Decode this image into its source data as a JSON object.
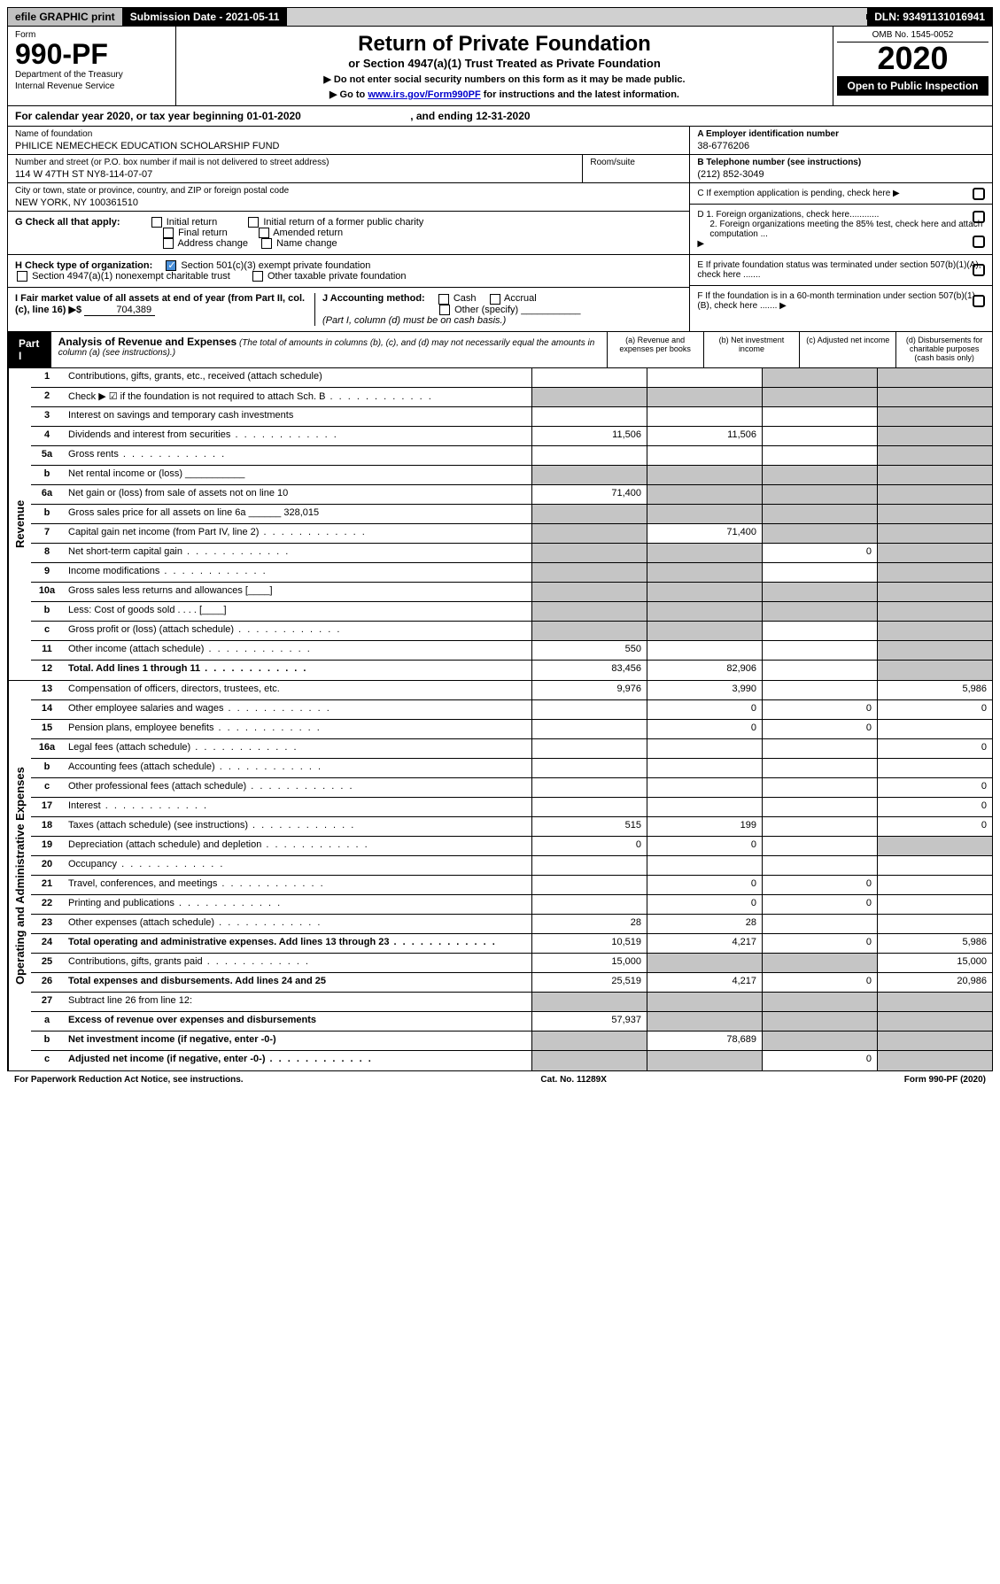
{
  "top_bar": {
    "efile": "efile GRAPHIC print",
    "submission": "Submission Date - 2021-05-11",
    "dln": "DLN: 93491131016941"
  },
  "header": {
    "form_label": "Form",
    "form_number": "990-PF",
    "dept1": "Department of the Treasury",
    "dept2": "Internal Revenue Service",
    "title": "Return of Private Foundation",
    "subtitle": "or Section 4947(a)(1) Trust Treated as Private Foundation",
    "instr1": "▶ Do not enter social security numbers on this form as it may be made public.",
    "instr2_pre": "▶ Go to ",
    "instr2_link": "www.irs.gov/Form990PF",
    "instr2_post": " for instructions and the latest information.",
    "omb": "OMB No. 1545-0052",
    "year": "2020",
    "open": "Open to Public Inspection"
  },
  "cal_year": {
    "text_pre": "For calendar year 2020, or tax year beginning ",
    "begin": "01-01-2020",
    "text_mid": " , and ending ",
    "end": "12-31-2020"
  },
  "foundation": {
    "name_label": "Name of foundation",
    "name": "PHILICE NEMECHECK EDUCATION SCHOLARSHIP FUND",
    "addr_label": "Number and street (or P.O. box number if mail is not delivered to street address)",
    "addr": "114 W 47TH ST NY8-114-07-07",
    "room_label": "Room/suite",
    "city_label": "City or town, state or province, country, and ZIP or foreign postal code",
    "city": "NEW YORK, NY  100361510"
  },
  "boxA": {
    "label": "A Employer identification number",
    "value": "38-6776206"
  },
  "boxB": {
    "label": "B Telephone number (see instructions)",
    "value": "(212) 852-3049"
  },
  "boxC": {
    "label": "C If exemption application is pending, check here"
  },
  "boxD": {
    "l1": "D 1. Foreign organizations, check here............",
    "l2": "2. Foreign organizations meeting the 85% test, check here and attach computation ..."
  },
  "boxE": {
    "label": "E  If private foundation status was terminated under section 507(b)(1)(A), check here ......."
  },
  "boxF": {
    "label": "F  If the foundation is in a 60-month termination under section 507(b)(1)(B), check here ......."
  },
  "checkG": {
    "label": "G Check all that apply:",
    "c1": "Initial return",
    "c2": "Initial return of a former public charity",
    "c3": "Final return",
    "c4": "Amended return",
    "c5": "Address change",
    "c6": "Name change"
  },
  "checkH": {
    "label": "H Check type of organization:",
    "c1": "Section 501(c)(3) exempt private foundation",
    "c2": "Section 4947(a)(1) nonexempt charitable trust",
    "c3": "Other taxable private foundation"
  },
  "checkI": {
    "label": "I Fair market value of all assets at end of year (from Part II, col. (c), line 16) ▶$ ",
    "value": "704,389"
  },
  "checkJ": {
    "label": "J Accounting method:",
    "c1": "Cash",
    "c2": "Accrual",
    "c3": "Other (specify)",
    "note": "(Part I, column (d) must be on cash basis.)"
  },
  "part1": {
    "label": "Part I",
    "title": "Analysis of Revenue and Expenses",
    "title_note": " (The total of amounts in columns (b), (c), and (d) may not necessarily equal the amounts in column (a) (see instructions).)",
    "col_a": "(a)   Revenue and expenses per books",
    "col_b": "(b)  Net investment income",
    "col_c": "(c)  Adjusted net income",
    "col_d": "(d)  Disbursements for charitable purposes (cash basis only)"
  },
  "sections": {
    "revenue": "Revenue",
    "expenses": "Operating and Administrative Expenses"
  },
  "rows": [
    {
      "n": "1",
      "d": "Contributions, gifts, grants, etc., received (attach schedule)",
      "a": "",
      "b": "",
      "c": "g",
      "dd": "g"
    },
    {
      "n": "2",
      "d": "Check ▶ ☑ if the foundation is not required to attach Sch. B",
      "a": "g",
      "b": "g",
      "c": "g",
      "dd": "g",
      "dots": true
    },
    {
      "n": "3",
      "d": "Interest on savings and temporary cash investments",
      "a": "",
      "b": "",
      "c": "",
      "dd": "g"
    },
    {
      "n": "4",
      "d": "Dividends and interest from securities",
      "a": "11,506",
      "b": "11,506",
      "c": "",
      "dd": "g",
      "dots": true
    },
    {
      "n": "5a",
      "d": "Gross rents",
      "a": "",
      "b": "",
      "c": "",
      "dd": "g",
      "dots": true
    },
    {
      "n": "b",
      "d": "Net rental income or (loss)  ___________",
      "a": "g",
      "b": "g",
      "c": "g",
      "dd": "g"
    },
    {
      "n": "6a",
      "d": "Net gain or (loss) from sale of assets not on line 10",
      "a": "71,400",
      "b": "g",
      "c": "g",
      "dd": "g"
    },
    {
      "n": "b",
      "d": "Gross sales price for all assets on line 6a ______ 328,015",
      "a": "g",
      "b": "g",
      "c": "g",
      "dd": "g"
    },
    {
      "n": "7",
      "d": "Capital gain net income (from Part IV, line 2)",
      "a": "g",
      "b": "71,400",
      "c": "g",
      "dd": "g",
      "dots": true
    },
    {
      "n": "8",
      "d": "Net short-term capital gain",
      "a": "g",
      "b": "g",
      "c": "0",
      "dd": "g",
      "dots": true
    },
    {
      "n": "9",
      "d": "Income modifications",
      "a": "g",
      "b": "g",
      "c": "",
      "dd": "g",
      "dots": true
    },
    {
      "n": "10a",
      "d": "Gross sales less returns and allowances  [____]",
      "a": "g",
      "b": "g",
      "c": "g",
      "dd": "g"
    },
    {
      "n": "b",
      "d": "Less: Cost of goods sold      . . . .  [____]",
      "a": "g",
      "b": "g",
      "c": "g",
      "dd": "g"
    },
    {
      "n": "c",
      "d": "Gross profit or (loss) (attach schedule)",
      "a": "g",
      "b": "g",
      "c": "",
      "dd": "g",
      "dots": true
    },
    {
      "n": "11",
      "d": "Other income (attach schedule)",
      "a": "550",
      "b": "",
      "c": "",
      "dd": "g",
      "dots": true
    },
    {
      "n": "12",
      "d": "Total. Add lines 1 through 11",
      "a": "83,456",
      "b": "82,906",
      "c": "",
      "dd": "g",
      "bold": true,
      "dots": true
    }
  ],
  "exp_rows": [
    {
      "n": "13",
      "d": "Compensation of officers, directors, trustees, etc.",
      "a": "9,976",
      "b": "3,990",
      "c": "",
      "dd": "5,986"
    },
    {
      "n": "14",
      "d": "Other employee salaries and wages",
      "a": "",
      "b": "0",
      "c": "0",
      "dd": "0",
      "dots": true
    },
    {
      "n": "15",
      "d": "Pension plans, employee benefits",
      "a": "",
      "b": "0",
      "c": "0",
      "dd": "",
      "dots": true
    },
    {
      "n": "16a",
      "d": "Legal fees (attach schedule)",
      "a": "",
      "b": "",
      "c": "",
      "dd": "0",
      "dots": true
    },
    {
      "n": "b",
      "d": "Accounting fees (attach schedule)",
      "a": "",
      "b": "",
      "c": "",
      "dd": "",
      "dots": true
    },
    {
      "n": "c",
      "d": "Other professional fees (attach schedule)",
      "a": "",
      "b": "",
      "c": "",
      "dd": "0",
      "dots": true
    },
    {
      "n": "17",
      "d": "Interest",
      "a": "",
      "b": "",
      "c": "",
      "dd": "0",
      "dots": true
    },
    {
      "n": "18",
      "d": "Taxes (attach schedule) (see instructions)",
      "a": "515",
      "b": "199",
      "c": "",
      "dd": "0",
      "dots": true
    },
    {
      "n": "19",
      "d": "Depreciation (attach schedule) and depletion",
      "a": "0",
      "b": "0",
      "c": "",
      "dd": "g",
      "dots": true
    },
    {
      "n": "20",
      "d": "Occupancy",
      "a": "",
      "b": "",
      "c": "",
      "dd": "",
      "dots": true
    },
    {
      "n": "21",
      "d": "Travel, conferences, and meetings",
      "a": "",
      "b": "0",
      "c": "0",
      "dd": "",
      "dots": true
    },
    {
      "n": "22",
      "d": "Printing and publications",
      "a": "",
      "b": "0",
      "c": "0",
      "dd": "",
      "dots": true
    },
    {
      "n": "23",
      "d": "Other expenses (attach schedule)",
      "a": "28",
      "b": "28",
      "c": "",
      "dd": "",
      "dots": true
    },
    {
      "n": "24",
      "d": "Total operating and administrative expenses. Add lines 13 through 23",
      "a": "10,519",
      "b": "4,217",
      "c": "0",
      "dd": "5,986",
      "bold": true,
      "dots": true
    },
    {
      "n": "25",
      "d": "Contributions, gifts, grants paid",
      "a": "15,000",
      "b": "g",
      "c": "g",
      "dd": "15,000",
      "dots": true
    },
    {
      "n": "26",
      "d": "Total expenses and disbursements. Add lines 24 and 25",
      "a": "25,519",
      "b": "4,217",
      "c": "0",
      "dd": "20,986",
      "bold": true
    },
    {
      "n": "27",
      "d": "Subtract line 26 from line 12:",
      "a": "g",
      "b": "g",
      "c": "g",
      "dd": "g"
    },
    {
      "n": "a",
      "d": "Excess of revenue over expenses and disbursements",
      "a": "57,937",
      "b": "g",
      "c": "g",
      "dd": "g",
      "bold": true
    },
    {
      "n": "b",
      "d": "Net investment income (if negative, enter -0-)",
      "a": "g",
      "b": "78,689",
      "c": "g",
      "dd": "g",
      "bold": true
    },
    {
      "n": "c",
      "d": "Adjusted net income (if negative, enter -0-)",
      "a": "g",
      "b": "g",
      "c": "0",
      "dd": "g",
      "bold": true,
      "dots": true
    }
  ],
  "footer": {
    "left": "For Paperwork Reduction Act Notice, see instructions.",
    "mid": "Cat. No. 11289X",
    "right": "Form 990-PF (2020)"
  }
}
